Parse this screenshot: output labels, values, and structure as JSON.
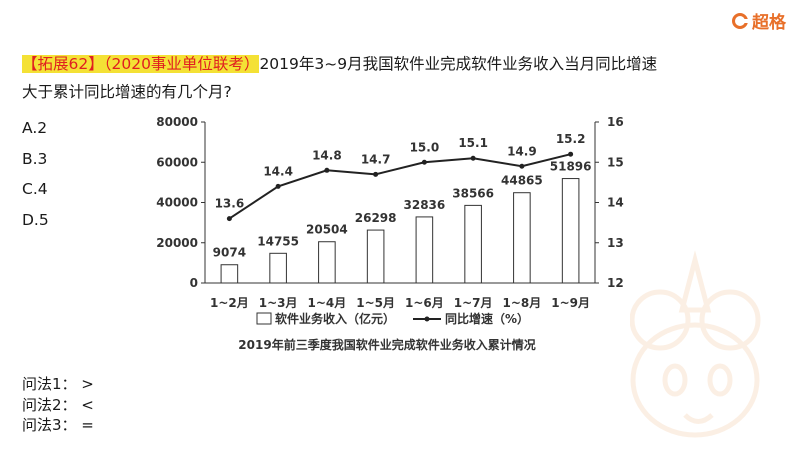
{
  "logo": {
    "text": "超格",
    "icon": "logo-g-icon"
  },
  "question": {
    "tag": "【拓展62】",
    "source": "（2020事业单位联考）",
    "text_line1": "2019年3~9月我国软件业完成软件业务收入当月同比增速",
    "text_line2": "大于累计同比增速的有几个月?"
  },
  "options": [
    "A.2",
    "B.3",
    "C.4",
    "D.5"
  ],
  "methods": [
    "问法1： >",
    "问法2： <",
    "问法3： ="
  ],
  "chart_data": {
    "type": "bar+line",
    "categories": [
      "1~2月",
      "1~3月",
      "1~4月",
      "1~5月",
      "1~6月",
      "1~7月",
      "1~8月",
      "1~9月"
    ],
    "series": [
      {
        "name": "软件业务收入（亿元）",
        "type": "bar",
        "axis": "left",
        "values": [
          9074,
          14755,
          20504,
          26298,
          32836,
          38566,
          44865,
          51896
        ]
      },
      {
        "name": "同比增速（%）",
        "type": "line",
        "axis": "right",
        "values": [
          13.6,
          14.4,
          14.8,
          14.7,
          15.0,
          15.1,
          14.9,
          15.2
        ]
      }
    ],
    "y_left": {
      "lim": [
        0,
        80000
      ],
      "ticks": [
        "0",
        "20000",
        "40000",
        "60000",
        "80000"
      ]
    },
    "y_right": {
      "lim": [
        12,
        16
      ],
      "ticks": [
        "12",
        "13",
        "14",
        "15",
        "16"
      ]
    },
    "title": "2019年前三季度我国软件业完成软件业务收入累计情况",
    "legend_position": "bottom",
    "grid": false,
    "colors": {
      "bar_fill": "#ffffff",
      "bar_stroke": "#333333",
      "line": "#222222"
    }
  }
}
